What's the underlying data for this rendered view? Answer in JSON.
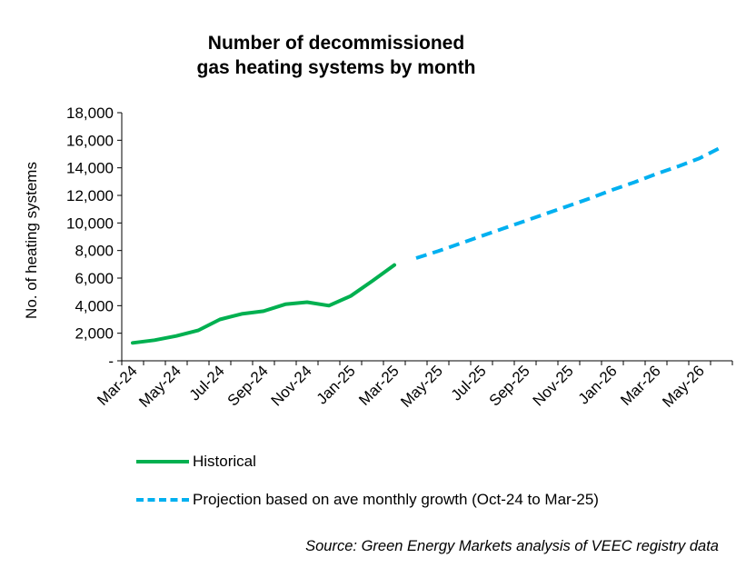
{
  "chart_data": {
    "type": "line",
    "title_line1": "Number of decommissioned",
    "title_line2": "gas heating systems by month",
    "ylabel": "No. of heating systems",
    "ylim": [
      0,
      18000
    ],
    "yticks": [
      0,
      2000,
      4000,
      6000,
      8000,
      10000,
      12000,
      14000,
      16000,
      18000
    ],
    "ytick_labels": [
      "-",
      "2,000",
      "4,000",
      "6,000",
      "8,000",
      "10,000",
      "12,000",
      "14,000",
      "16,000",
      "18,000"
    ],
    "months": [
      "Mar-24",
      "Apr-24",
      "May-24",
      "Jun-24",
      "Jul-24",
      "Aug-24",
      "Sep-24",
      "Oct-24",
      "Nov-24",
      "Dec-24",
      "Jan-25",
      "Feb-25",
      "Mar-25",
      "Apr-25",
      "May-25",
      "Jun-25",
      "Jul-25",
      "Aug-25",
      "Sep-25",
      "Oct-25",
      "Nov-25",
      "Dec-25",
      "Jan-26",
      "Feb-26",
      "Mar-26",
      "Apr-26",
      "May-26",
      "Jun-26"
    ],
    "x_tick_labels": [
      "Mar-24",
      "May-24",
      "Jul-24",
      "Sep-24",
      "Nov-24",
      "Jan-25",
      "Mar-25",
      "May-25",
      "Jul-25",
      "Sep-25",
      "Nov-25",
      "Jan-26",
      "Mar-26",
      "May-26"
    ],
    "series": [
      {
        "name": "Historical",
        "color": "#00b050",
        "style": "solid",
        "start_index": 0,
        "values": [
          1300,
          1500,
          1800,
          2200,
          3000,
          3400,
          3600,
          4100,
          4250,
          4000,
          4700,
          5800,
          6950
        ]
      },
      {
        "name": "Projection based on ave monthly growth (Oct-24 to Mar-25)",
        "color": "#00b0f0",
        "style": "dashed",
        "start_index": 13,
        "values": [
          7450,
          7950,
          8500,
          9050,
          9600,
          10150,
          10700,
          11250,
          11800,
          12400,
          12950,
          13550,
          14100,
          14700,
          15500
        ]
      }
    ],
    "grid": false,
    "legend_position": "bottom"
  },
  "source": "Source: Green Energy Markets analysis of VEEC registry data"
}
